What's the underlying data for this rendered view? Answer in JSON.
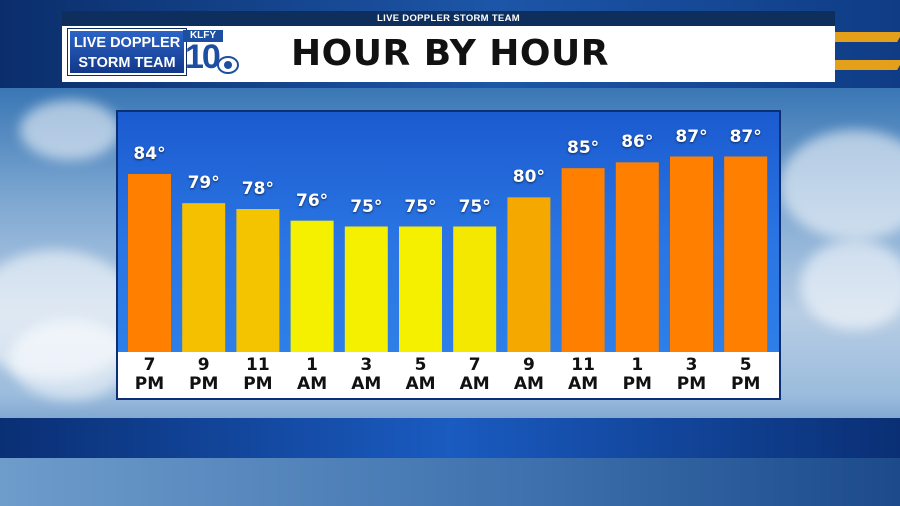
{
  "header": {
    "network_label": "LIVE DOPPLER STORM TEAM",
    "logo_line1": "LIVE DOPPLER",
    "logo_line2": "STORM TEAM",
    "station_call": "KLFY",
    "station_number": "10",
    "title": "HOUR BY HOUR"
  },
  "chart_data": {
    "type": "bar",
    "title": "HOUR BY HOUR",
    "categories": [
      [
        "7",
        "PM"
      ],
      [
        "9",
        "PM"
      ],
      [
        "11",
        "PM"
      ],
      [
        "1",
        "AM"
      ],
      [
        "3",
        "AM"
      ],
      [
        "5",
        "AM"
      ],
      [
        "7",
        "AM"
      ],
      [
        "9",
        "AM"
      ],
      [
        "11",
        "AM"
      ],
      [
        "1",
        "PM"
      ],
      [
        "3",
        "PM"
      ],
      [
        "5",
        "PM"
      ]
    ],
    "values": [
      84,
      79,
      78,
      76,
      75,
      75,
      75,
      80,
      85,
      86,
      87,
      87
    ],
    "value_labels": [
      "84°",
      "79°",
      "78°",
      "76°",
      "75°",
      "75°",
      "75°",
      "80°",
      "85°",
      "86°",
      "87°",
      "87°"
    ],
    "bar_colors": [
      "#ff7f00",
      "#f5c000",
      "#f5c400",
      "#f5ef00",
      "#f5ef00",
      "#f5ef00",
      "#f5e800",
      "#f5a800",
      "#ff7f00",
      "#ff7f00",
      "#ff7f00",
      "#ff7f00"
    ],
    "xlabel": "",
    "ylabel": "",
    "grid": false,
    "legend": "none"
  },
  "colors": {
    "panel": "#2a75e3",
    "brand_blue": "#1c4fa1",
    "accent_gold": "#e4a01a"
  }
}
